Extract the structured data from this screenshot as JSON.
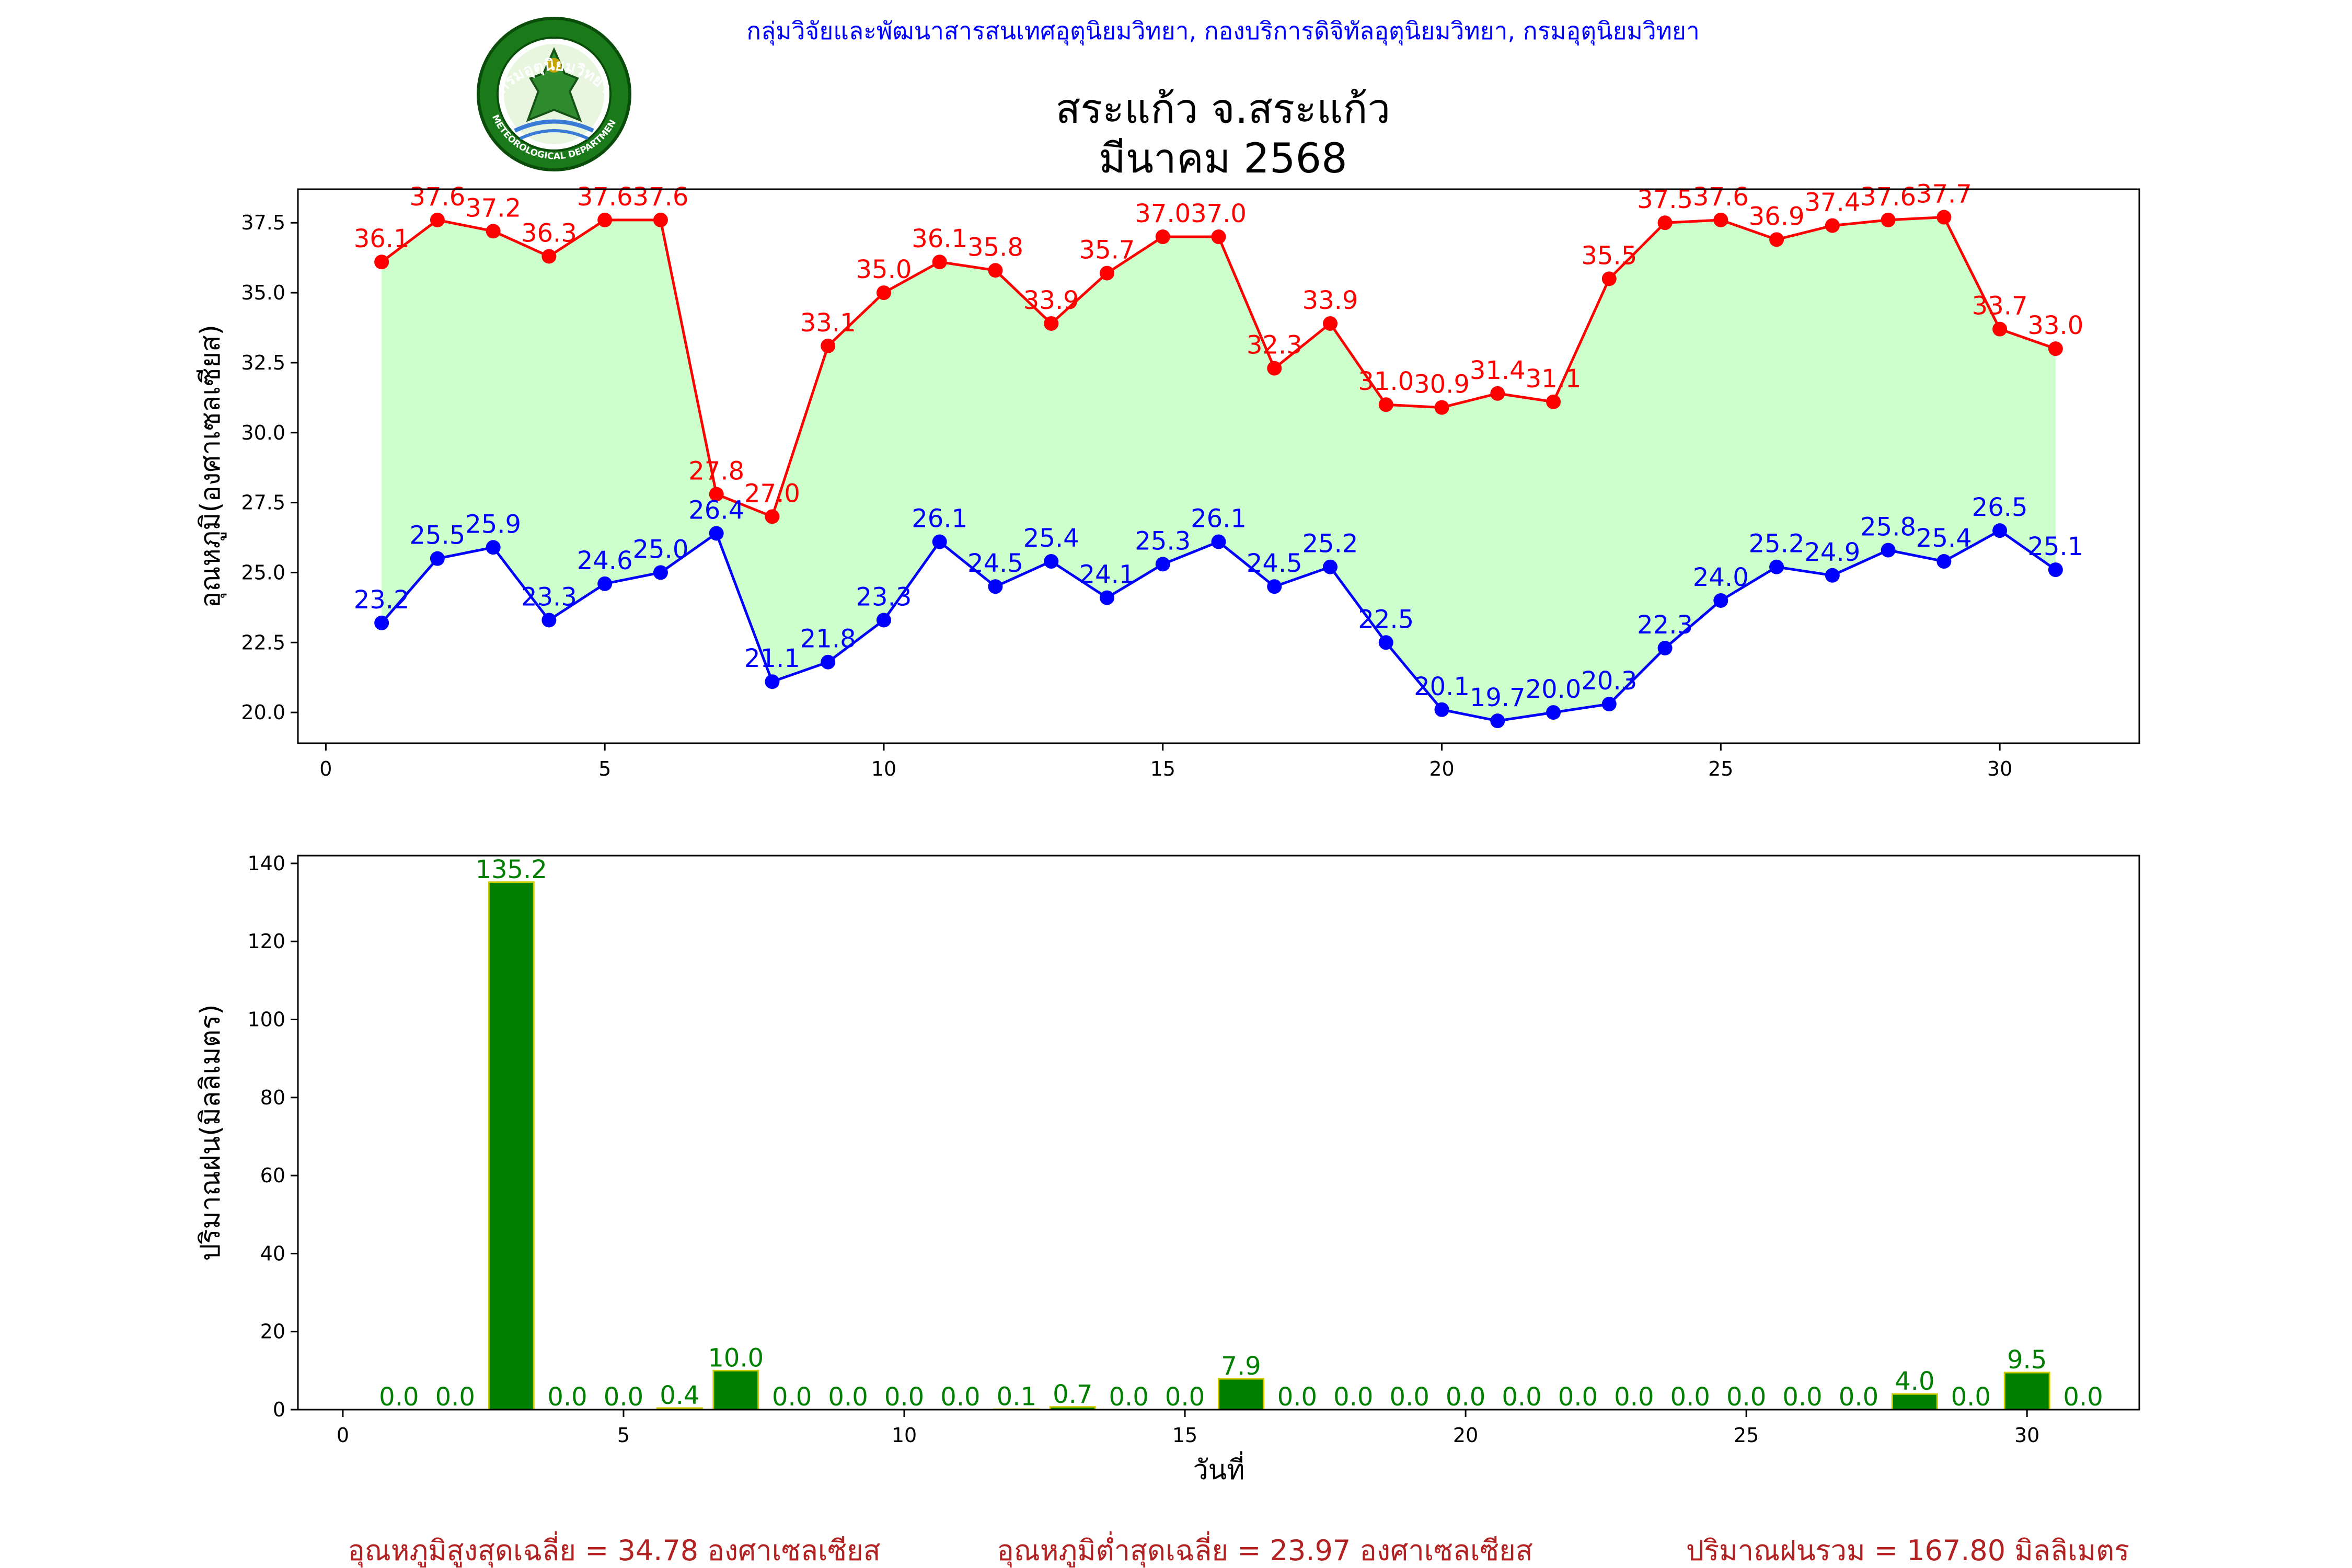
{
  "header": {
    "agency_line": "กลุ่มวิจัยและพัฒนาสารสนเทศอุตุนิยมวิทยา, กองบริการดิจิทัลอุตุนิยมวิทยา, กรมอุตุนิยมวิทยา",
    "station_title": "สระแก้ว จ.สระแก้ว",
    "period_title": "มีนาคม 2568",
    "logo_top_text": "กรมอุตุนิยมวิทยา",
    "logo_bottom_text": "METEOROLOGICAL DEPARTMENT"
  },
  "colors": {
    "max_line": "#ff0000",
    "min_line": "#0000ff",
    "band_fill": "#ccffcc",
    "rain_bar": "#008000",
    "rain_edge": "#cccc00",
    "rain_label": "#008000",
    "header_blue": "#0000ff",
    "summary_text": "#b22222"
  },
  "chart_data": [
    {
      "type": "line",
      "ylabel": "อุณหภูมิ(องศาเซลเซียส)",
      "xlabel": "",
      "x": [
        1,
        2,
        3,
        4,
        5,
        6,
        7,
        8,
        9,
        10,
        11,
        12,
        13,
        14,
        15,
        16,
        17,
        18,
        19,
        20,
        21,
        22,
        23,
        24,
        25,
        26,
        27,
        28,
        29,
        30,
        31
      ],
      "xlim": [
        -0.5,
        32.5
      ],
      "ylim": [
        18.9,
        38.7
      ],
      "xticks": [
        0,
        5,
        10,
        15,
        20,
        25,
        30
      ],
      "yticks": [
        20.0,
        22.5,
        25.0,
        27.5,
        30.0,
        32.5,
        35.0,
        37.5
      ],
      "fill_between": true,
      "series": [
        {
          "key": "max",
          "values": [
            36.1,
            37.6,
            37.2,
            36.3,
            37.6,
            37.6,
            27.8,
            27.0,
            33.1,
            35.0,
            36.1,
            35.8,
            33.9,
            35.7,
            37.0,
            37.0,
            32.3,
            33.9,
            31.0,
            30.9,
            31.4,
            31.1,
            35.5,
            37.5,
            37.6,
            36.9,
            37.4,
            37.6,
            37.7,
            33.7,
            33.0
          ]
        },
        {
          "key": "min",
          "values": [
            23.2,
            25.5,
            25.9,
            23.3,
            24.6,
            25.0,
            26.4,
            21.1,
            21.8,
            23.3,
            26.1,
            24.5,
            25.4,
            24.1,
            25.3,
            26.1,
            24.5,
            25.2,
            22.5,
            20.1,
            19.7,
            20.0,
            20.3,
            22.3,
            24.0,
            25.2,
            24.9,
            25.8,
            25.4,
            26.5,
            25.1
          ]
        }
      ]
    },
    {
      "type": "bar",
      "ylabel": "ปริมาณฝน(มิลลิเมตร)",
      "xlabel": "วันที่",
      "x": [
        1,
        2,
        3,
        4,
        5,
        6,
        7,
        8,
        9,
        10,
        11,
        12,
        13,
        14,
        15,
        16,
        17,
        18,
        19,
        20,
        21,
        22,
        23,
        24,
        25,
        26,
        27,
        28,
        29,
        30,
        31
      ],
      "values": [
        0.0,
        0.0,
        135.2,
        0.0,
        0.0,
        0.4,
        10.0,
        0.0,
        0.0,
        0.0,
        0.0,
        0.1,
        0.7,
        0.0,
        0.0,
        7.9,
        0.0,
        0.0,
        0.0,
        0.0,
        0.0,
        0.0,
        0.0,
        0.0,
        0.0,
        0.0,
        0.0,
        4.0,
        0.0,
        9.5,
        0.0
      ],
      "xlim": [
        -0.8,
        32.0
      ],
      "ylim": [
        0,
        142
      ],
      "xticks": [
        0,
        5,
        10,
        15,
        20,
        25,
        30
      ],
      "yticks": [
        0,
        20,
        40,
        60,
        80,
        100,
        120,
        140
      ]
    }
  ],
  "summary": {
    "avg_max": "อุณหภูมิสูงสุดเฉลี่ย = 34.78 องศาเซลเซียส",
    "avg_min": "อุณหภูมิต่ำสุดเฉลี่ย = 23.97 องศาเซลเซียส",
    "total_rain": "ปริมาณฝนรวม = 167.80 มิลลิเมตร"
  }
}
